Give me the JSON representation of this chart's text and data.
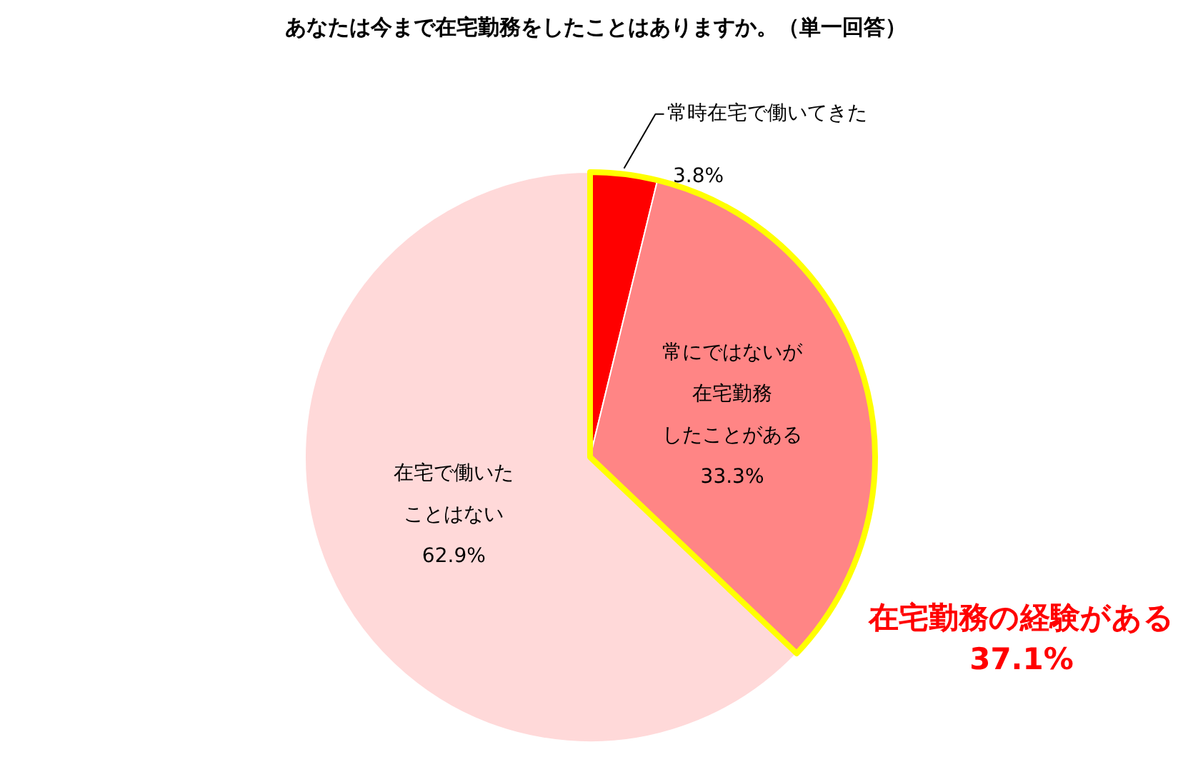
{
  "chart_data": {
    "type": "pie",
    "title": "あなたは今まで在宅勤務をしたことはありますか。（単一回答）",
    "categories": [
      "常時在宅で働いてきた",
      "常にではないが在宅勤務したことがある",
      "在宅で働いたことはない"
    ],
    "values": [
      3.8,
      33.3,
      62.9
    ],
    "colors": [
      "#ff0000",
      "#ff8585",
      "#ffd9d9"
    ],
    "value_labels": [
      "3.8%",
      "33.3%",
      "62.9%"
    ],
    "annotations": [
      "在宅勤務の経験がある\n37.1%"
    ],
    "legend": false
  }
}
